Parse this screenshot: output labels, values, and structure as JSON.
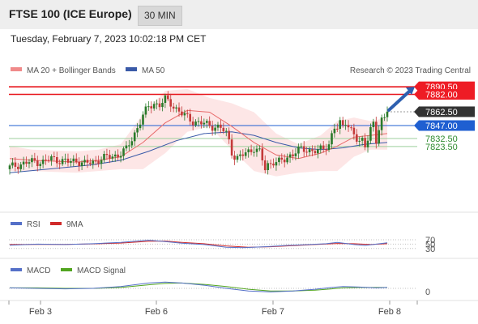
{
  "header": {
    "title": "FTSE 100 (ICE Europe)",
    "timeframe": "30 MIN"
  },
  "timestamp": "Tuesday, February 7, 2023 10:02:18 PM CET",
  "legend": {
    "ma20": "MA 20 + Bollinger Bands",
    "ma50": "MA 50",
    "credit": "Research © 2023 Trading Central"
  },
  "rsi_legend": {
    "rsi": "RSI",
    "ma9": "9MA"
  },
  "macd_legend": {
    "macd": "MACD",
    "signal": "MACD Signal"
  },
  "x_axis": {
    "labels": [
      "Feb 3",
      "Feb 6",
      "Feb 7",
      "Feb 8"
    ]
  },
  "price_levels": [
    {
      "value": 7890.5,
      "label": "7890.50",
      "kind": "resistance",
      "color": "#e8141b"
    },
    {
      "value": 7882.0,
      "label": "7882.00",
      "kind": "resistance",
      "color": "#e8141b"
    },
    {
      "value": 7862.5,
      "label": "7862.50",
      "kind": "last",
      "color": "#333333"
    },
    {
      "value": 7847.0,
      "label": "7847.00",
      "kind": "pivot",
      "color": "#1f5fd1"
    },
    {
      "value": 7832.5,
      "label": "7832.50",
      "kind": "support",
      "color": "#2e8b2e"
    },
    {
      "value": 7823.5,
      "label": "7823.50",
      "kind": "support",
      "color": "#2e8b2e"
    }
  ],
  "rsi_levels": [
    "70",
    "50",
    "30"
  ],
  "macd_levels": [
    "0"
  ],
  "colors": {
    "up": "#2a7a2a",
    "down": "#c43a3a",
    "ma20": "#e86a6a",
    "ma50": "#3a5aa8",
    "band": "#fde2e2",
    "rsi": "#5570c8",
    "rsi_ma": "#d02a2a",
    "macd": "#5570c8",
    "macd_signal": "#52a520",
    "arrow": "#2e60b0"
  },
  "chart_data": {
    "type": "candlestick",
    "title": "FTSE 100 (ICE Europe)",
    "interval": "30 MIN",
    "x_ticks": [
      "Feb 3",
      "Feb 6",
      "Feb 7",
      "Feb 8"
    ],
    "last_price": 7862.5,
    "projection_target": 7890.5,
    "close_path": [
      [
        0,
        7800
      ],
      [
        3,
        7803
      ],
      [
        6,
        7805
      ],
      [
        9,
        7807
      ],
      [
        12,
        7806
      ],
      [
        15,
        7810
      ],
      [
        18,
        7808
      ],
      [
        21,
        7806
      ],
      [
        24,
        7808
      ],
      [
        27,
        7804
      ],
      [
        30,
        7806
      ],
      [
        33,
        7810
      ],
      [
        36,
        7812
      ],
      [
        39,
        7814
      ],
      [
        42,
        7820
      ],
      [
        44,
        7832
      ],
      [
        46,
        7845
      ],
      [
        48,
        7858
      ],
      [
        50,
        7868
      ],
      [
        52,
        7872
      ],
      [
        54,
        7870
      ],
      [
        56,
        7876
      ],
      [
        58,
        7872
      ],
      [
        60,
        7866
      ],
      [
        62,
        7860
      ],
      [
        64,
        7856
      ],
      [
        66,
        7852
      ],
      [
        68,
        7850
      ],
      [
        70,
        7849
      ],
      [
        72,
        7847
      ],
      [
        74,
        7846
      ],
      [
        76,
        7844
      ],
      [
        78,
        7838
      ],
      [
        79,
        7830
      ],
      [
        80,
        7818
      ],
      [
        81,
        7812
      ],
      [
        82,
        7810
      ],
      [
        84,
        7814
      ],
      [
        86,
        7818
      ],
      [
        88,
        7822
      ],
      [
        90,
        7817
      ],
      [
        91,
        7808
      ],
      [
        92,
        7798
      ],
      [
        93,
        7803
      ],
      [
        95,
        7807
      ],
      [
        97,
        7806
      ],
      [
        99,
        7808
      ],
      [
        101,
        7814
      ],
      [
        103,
        7818
      ],
      [
        105,
        7820
      ],
      [
        107,
        7819
      ],
      [
        109,
        7820
      ],
      [
        111,
        7818
      ],
      [
        113,
        7821
      ],
      [
        115,
        7826
      ],
      [
        116,
        7838
      ],
      [
        117,
        7846
      ],
      [
        118,
        7843
      ],
      [
        119,
        7848
      ],
      [
        120,
        7846
      ],
      [
        121,
        7852
      ],
      [
        122,
        7847
      ],
      [
        123,
        7843
      ],
      [
        124,
        7838
      ],
      [
        125,
        7830
      ],
      [
        126,
        7826
      ],
      [
        127,
        7830
      ],
      [
        128,
        7826
      ],
      [
        129,
        7834
      ],
      [
        130,
        7844
      ],
      [
        131,
        7850
      ],
      [
        132,
        7828
      ],
      [
        133,
        7840
      ],
      [
        134,
        7852
      ],
      [
        135,
        7858
      ],
      [
        136,
        7862.5
      ]
    ],
    "ma20": [
      [
        0,
        7810
      ],
      [
        8,
        7808
      ],
      [
        16,
        7807
      ],
      [
        24,
        7806
      ],
      [
        32,
        7808
      ],
      [
        40,
        7812
      ],
      [
        48,
        7828
      ],
      [
        56,
        7850
      ],
      [
        64,
        7864
      ],
      [
        72,
        7862
      ],
      [
        80,
        7846
      ],
      [
        88,
        7828
      ],
      [
        96,
        7814
      ],
      [
        104,
        7810
      ],
      [
        112,
        7816
      ],
      [
        118,
        7824
      ],
      [
        124,
        7834
      ],
      [
        130,
        7836
      ],
      [
        136,
        7838
      ]
    ],
    "ma50": [
      [
        0,
        7794
      ],
      [
        10,
        7797
      ],
      [
        20,
        7800
      ],
      [
        30,
        7803
      ],
      [
        40,
        7808
      ],
      [
        50,
        7818
      ],
      [
        60,
        7830
      ],
      [
        70,
        7838
      ],
      [
        80,
        7840
      ],
      [
        88,
        7836
      ],
      [
        96,
        7828
      ],
      [
        104,
        7822
      ],
      [
        112,
        7820
      ],
      [
        120,
        7822
      ],
      [
        128,
        7826
      ],
      [
        136,
        7828
      ]
    ],
    "bb_upper": [
      [
        0,
        7824
      ],
      [
        8,
        7820
      ],
      [
        16,
        7819
      ],
      [
        24,
        7818
      ],
      [
        32,
        7820
      ],
      [
        40,
        7826
      ],
      [
        48,
        7860
      ],
      [
        56,
        7886
      ],
      [
        64,
        7888
      ],
      [
        72,
        7878
      ],
      [
        80,
        7872
      ],
      [
        88,
        7862
      ],
      [
        96,
        7838
      ],
      [
        104,
        7826
      ],
      [
        112,
        7836
      ],
      [
        118,
        7852
      ],
      [
        124,
        7856
      ],
      [
        130,
        7852
      ],
      [
        136,
        7856
      ]
    ],
    "bb_lower": [
      [
        0,
        7796
      ],
      [
        8,
        7796
      ],
      [
        16,
        7795
      ],
      [
        24,
        7794
      ],
      [
        32,
        7796
      ],
      [
        40,
        7798
      ],
      [
        48,
        7798
      ],
      [
        56,
        7816
      ],
      [
        64,
        7840
      ],
      [
        72,
        7846
      ],
      [
        80,
        7820
      ],
      [
        88,
        7796
      ],
      [
        96,
        7790
      ],
      [
        104,
        7794
      ],
      [
        112,
        7796
      ],
      [
        118,
        7796
      ],
      [
        124,
        7812
      ],
      [
        130,
        7820
      ],
      [
        136,
        7820
      ]
    ],
    "rsi": [
      [
        0,
        45
      ],
      [
        10,
        50
      ],
      [
        20,
        48
      ],
      [
        30,
        52
      ],
      [
        40,
        58
      ],
      [
        46,
        64
      ],
      [
        50,
        68
      ],
      [
        56,
        62
      ],
      [
        62,
        54
      ],
      [
        70,
        48
      ],
      [
        78,
        36
      ],
      [
        84,
        34
      ],
      [
        92,
        38
      ],
      [
        100,
        44
      ],
      [
        108,
        48
      ],
      [
        114,
        52
      ],
      [
        118,
        58
      ],
      [
        124,
        48
      ],
      [
        128,
        44
      ],
      [
        132,
        50
      ],
      [
        136,
        56
      ]
    ],
    "rsi_ma": [
      [
        0,
        48
      ],
      [
        10,
        49
      ],
      [
        20,
        49
      ],
      [
        30,
        51
      ],
      [
        40,
        55
      ],
      [
        50,
        63
      ],
      [
        56,
        64
      ],
      [
        62,
        58
      ],
      [
        70,
        52
      ],
      [
        78,
        42
      ],
      [
        86,
        36
      ],
      [
        94,
        38
      ],
      [
        102,
        43
      ],
      [
        110,
        48
      ],
      [
        118,
        53
      ],
      [
        124,
        52
      ],
      [
        130,
        48
      ],
      [
        136,
        52
      ]
    ],
    "macd": [
      [
        0,
        1
      ],
      [
        10,
        0
      ],
      [
        20,
        -1
      ],
      [
        30,
        0
      ],
      [
        40,
        4
      ],
      [
        50,
        12
      ],
      [
        56,
        14
      ],
      [
        62,
        12
      ],
      [
        70,
        7
      ],
      [
        78,
        0
      ],
      [
        86,
        -6
      ],
      [
        94,
        -8
      ],
      [
        102,
        -6
      ],
      [
        110,
        -2
      ],
      [
        116,
        2
      ],
      [
        120,
        4
      ],
      [
        126,
        3
      ],
      [
        132,
        1
      ],
      [
        136,
        2
      ]
    ],
    "macd_signal": [
      [
        0,
        1
      ],
      [
        10,
        1
      ],
      [
        20,
        0
      ],
      [
        30,
        0
      ],
      [
        40,
        2
      ],
      [
        50,
        8
      ],
      [
        56,
        11
      ],
      [
        62,
        12
      ],
      [
        70,
        9
      ],
      [
        78,
        4
      ],
      [
        86,
        -2
      ],
      [
        94,
        -6
      ],
      [
        102,
        -6
      ],
      [
        110,
        -4
      ],
      [
        116,
        -1
      ],
      [
        120,
        1
      ],
      [
        126,
        2
      ],
      [
        132,
        2
      ],
      [
        136,
        2
      ]
    ]
  }
}
